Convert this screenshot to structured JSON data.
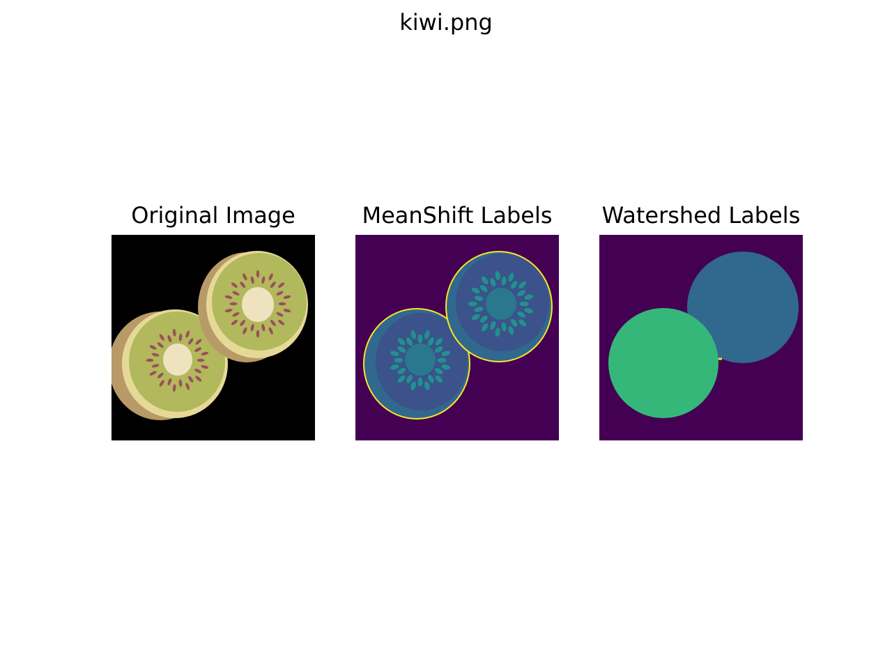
{
  "figure": {
    "suptitle": "kiwi.png"
  },
  "panels": [
    {
      "title": "Original Image"
    },
    {
      "title": "MeanShift Labels"
    },
    {
      "title": "Watershed Labels"
    }
  ],
  "colors": {
    "background_black": "#000000",
    "kiwi_skin": "#b89a68",
    "kiwi_rim": "#e6d998",
    "kiwi_flesh": "#b2b85c",
    "kiwi_core": "#efe3bf",
    "kiwi_seed": "#9a4f5c",
    "viridis_0": "#440154",
    "viridis_1": "#3b528b",
    "viridis_2": "#31688e",
    "viridis_3": "#21918c",
    "viridis_4": "#35b779",
    "viridis_5": "#fde725"
  }
}
